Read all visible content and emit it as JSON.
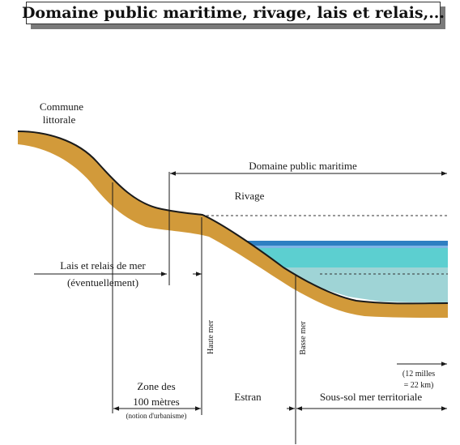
{
  "title": "Domaine public maritime, rivage, lais et relais,...",
  "labels": {
    "commune_line1": "Commune",
    "commune_line2": "littorale",
    "domaine_public_maritime": "Domaine public maritime",
    "rivage": "Rivage",
    "lais_relais": "Lais et relais de mer",
    "eventuellement": "(éventuellement)",
    "haute_mer": "Haute mer",
    "basse_mer": "Basse mer",
    "milles_line1": "(12 milles",
    "milles_line2": "= 22 km)",
    "zone_line1": "Zone des",
    "zone_line2": "100 mètres",
    "notion_urbanisme": "(notion d'urbanisme)",
    "estran": "Estran",
    "sous_sol": "Sous-sol mer territoriale"
  },
  "colors": {
    "ground": "#d29a3a",
    "ground_edge": "#1a1a1a",
    "sea_top": "#2e7fc2",
    "sea_upper": "#5ccfd0",
    "sea_lower": "#9fd4d6",
    "title_shadow": "#7a7a7a"
  }
}
